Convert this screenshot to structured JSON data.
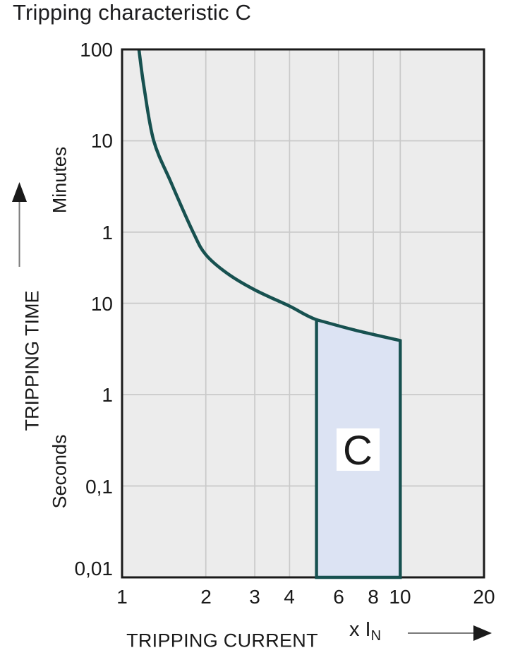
{
  "title": "Tripping characteristic C",
  "colors": {
    "curve": "#175150",
    "band_fill": "#dce3f3",
    "plot_bg": "#ececec",
    "grid": "#c9c9c9",
    "border": "#1a1a1a",
    "text": "#1a1a1a",
    "arrow_line": "#7a7a7a",
    "band_label_bg": "#ffffff"
  },
  "axis_labels": {
    "y_title": "TRIPPING TIME",
    "y_unit_upper": "Minutes",
    "y_unit_lower": "Seconds",
    "x_title": "TRIPPING CURRENT",
    "x_unit_prefix": "x I",
    "x_unit_sub": "N"
  },
  "chart_data": {
    "type": "line",
    "title": "Tripping characteristic C",
    "x_axis": {
      "label": "TRIPPING CURRENT (x IN)",
      "scale": "log",
      "range": [
        1,
        20
      ],
      "ticks": [
        {
          "label": "1",
          "value": 1
        },
        {
          "label": "2",
          "value": 2
        },
        {
          "label": "3",
          "value": 3
        },
        {
          "label": "4",
          "value": 4
        },
        {
          "label": "6",
          "value": 6
        },
        {
          "label": "8",
          "value": 8
        },
        {
          "label": "10",
          "value": 10
        },
        {
          "label": "20",
          "value": 20
        }
      ]
    },
    "y_axis": {
      "label": "TRIPPING TIME",
      "scale": "log",
      "range_seconds": [
        0.01,
        6000
      ],
      "ticks": [
        {
          "label": "100",
          "unit": "min",
          "seconds": 6000
        },
        {
          "label": "10",
          "unit": "min",
          "seconds": 600
        },
        {
          "label": "1",
          "unit": "min",
          "seconds": 60
        },
        {
          "label": "10",
          "unit": "s",
          "seconds": 10
        },
        {
          "label": "1",
          "unit": "s",
          "seconds": 1
        },
        {
          "label": "0,1",
          "unit": "s",
          "seconds": 0.1
        },
        {
          "label": "0,01",
          "unit": "s",
          "seconds": 0.01
        }
      ]
    },
    "grid": {
      "vertical_at": [
        2,
        3,
        4,
        6,
        8,
        10
      ],
      "horizontal_at_seconds": [
        600,
        60,
        10,
        1,
        0.1
      ]
    },
    "series": [
      {
        "name": "upper-tripping-limit-curve",
        "points_x_multiple_vs_seconds": [
          [
            1.15,
            6000
          ],
          [
            1.2,
            2300
          ],
          [
            1.3,
            600
          ],
          [
            1.5,
            210
          ],
          [
            1.8,
            60
          ],
          [
            2.0,
            34
          ],
          [
            2.4,
            21
          ],
          [
            3.0,
            14
          ],
          [
            4.0,
            9.3
          ],
          [
            5.0,
            6.6
          ],
          [
            7.0,
            5.0
          ],
          [
            10.0,
            3.9
          ]
        ]
      }
    ],
    "band": {
      "label": "C",
      "x_from_multiple": 5,
      "x_to_multiple": 10,
      "bottom_seconds": 0.01,
      "top": "follows curve"
    },
    "legend": "none"
  }
}
